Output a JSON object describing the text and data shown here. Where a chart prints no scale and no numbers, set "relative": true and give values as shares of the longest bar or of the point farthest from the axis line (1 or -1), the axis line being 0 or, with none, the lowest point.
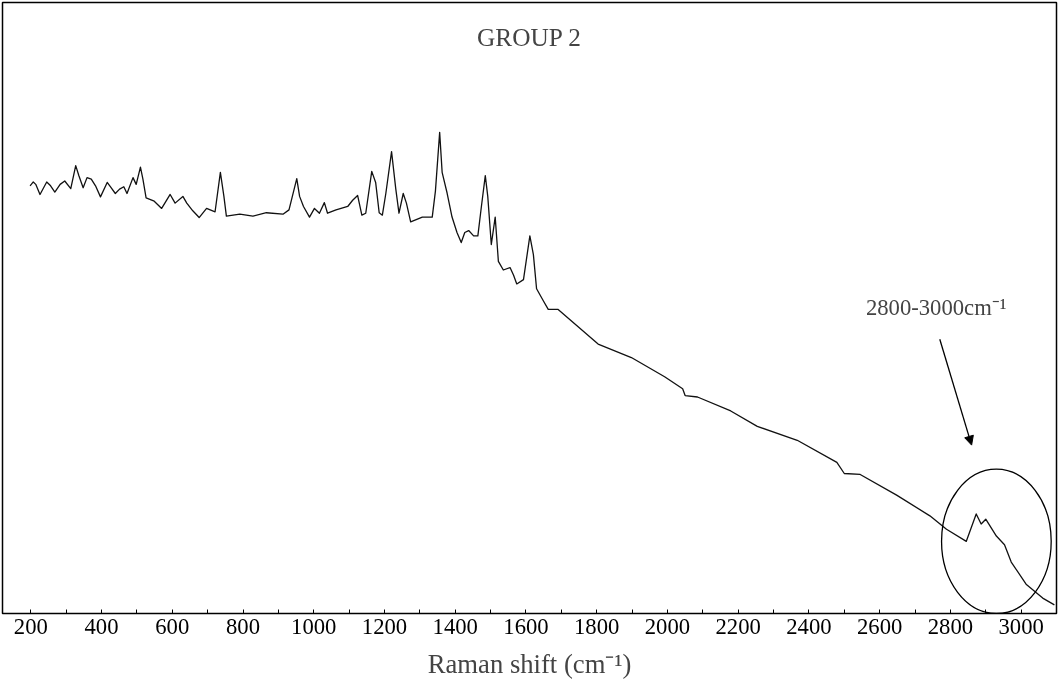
{
  "chart_data": {
    "type": "line",
    "title": "GROUP 2",
    "xlabel": "Raman shift (cm⁻¹)",
    "relative": true,
    "color": "#111111",
    "grid": false,
    "marker": "none",
    "line_style": "solid",
    "xlim": [
      120,
      3100
    ],
    "xticks": [
      200,
      400,
      600,
      800,
      1000,
      1200,
      1400,
      1600,
      1800,
      2000,
      2200,
      2400,
      2600,
      2800,
      3000,
      {
        "value": 300,
        "label": null
      },
      {
        "value": 500,
        "label": null
      },
      {
        "value": 700,
        "label": null
      },
      {
        "value": 900,
        "label": null
      },
      {
        "value": 1100,
        "label": null
      },
      {
        "value": 1300,
        "label": null
      },
      {
        "value": 1500,
        "label": null
      },
      {
        "value": 1700,
        "label": null
      },
      {
        "value": 1900,
        "label": null
      },
      {
        "value": 2100,
        "label": null
      },
      {
        "value": 2300,
        "label": null
      },
      {
        "value": 2500,
        "label": null
      },
      {
        "value": 2700,
        "label": null
      },
      {
        "value": 2900,
        "label": null
      }
    ],
    "annotations": [
      "2800-3000cm⁻¹"
    ],
    "x": [
      198,
      207,
      214,
      226,
      245,
      256,
      268,
      283,
      296,
      313,
      327,
      336,
      348,
      359,
      371,
      383,
      397,
      416,
      427,
      439,
      451,
      463,
      472,
      489,
      498,
      510,
      517,
      526,
      549,
      570,
      594,
      608,
      630,
      641,
      658,
      676,
      697,
      721,
      736,
      746,
      753,
      791,
      828,
      866,
      913,
      930,
      952,
      960,
      971,
      988,
      1002,
      1016,
      1030,
      1039,
      1063,
      1096,
      1110,
      1124,
      1136,
      1147,
      1164,
      1175,
      1185,
      1194,
      1204,
      1220,
      1232,
      1241,
      1253,
      1262,
      1274,
      1307,
      1335,
      1344,
      1356,
      1363,
      1377,
      1391,
      1405,
      1417,
      1427,
      1438,
      1452,
      1464,
      1474,
      1485,
      1492,
      1502,
      1513,
      1522,
      1536,
      1555,
      1565,
      1574,
      1593,
      1611,
      1621,
      1630,
      1649,
      1663,
      1691,
      1804,
      1898,
      1992,
      2043,
      2050,
      2085,
      2179,
      2254,
      2367,
      2479,
      2500,
      2545,
      2648,
      2742,
      2789,
      2845,
      2873,
      2887,
      2900,
      2930,
      2953,
      2972,
      3014,
      3061,
      3094
    ],
    "values": [
      0.889,
      0.897,
      0.892,
      0.871,
      0.897,
      0.889,
      0.876,
      0.892,
      0.899,
      0.883,
      0.931,
      0.91,
      0.885,
      0.906,
      0.903,
      0.889,
      0.866,
      0.896,
      0.885,
      0.873,
      0.882,
      0.887,
      0.873,
      0.906,
      0.892,
      0.928,
      0.903,
      0.864,
      0.857,
      0.842,
      0.871,
      0.853,
      0.867,
      0.853,
      0.837,
      0.823,
      0.842,
      0.835,
      0.917,
      0.867,
      0.826,
      0.83,
      0.826,
      0.833,
      0.83,
      0.839,
      0.904,
      0.867,
      0.846,
      0.824,
      0.842,
      0.832,
      0.854,
      0.832,
      0.839,
      0.846,
      0.859,
      0.869,
      0.828,
      0.832,
      0.919,
      0.896,
      0.833,
      0.828,
      0.874,
      0.96,
      0.882,
      0.832,
      0.873,
      0.853,
      0.814,
      0.824,
      0.824,
      0.878,
      1.0,
      0.917,
      0.874,
      0.824,
      0.792,
      0.771,
      0.792,
      0.796,
      0.785,
      0.785,
      0.846,
      0.91,
      0.867,
      0.767,
      0.824,
      0.732,
      0.714,
      0.719,
      0.703,
      0.685,
      0.694,
      0.785,
      0.746,
      0.675,
      0.65,
      0.632,
      0.632,
      0.56,
      0.532,
      0.492,
      0.467,
      0.453,
      0.45,
      0.421,
      0.389,
      0.36,
      0.314,
      0.291,
      0.289,
      0.246,
      0.203,
      0.175,
      0.15,
      0.207,
      0.186,
      0.196,
      0.161,
      0.143,
      0.107,
      0.061,
      0.032,
      0.018
    ]
  }
}
